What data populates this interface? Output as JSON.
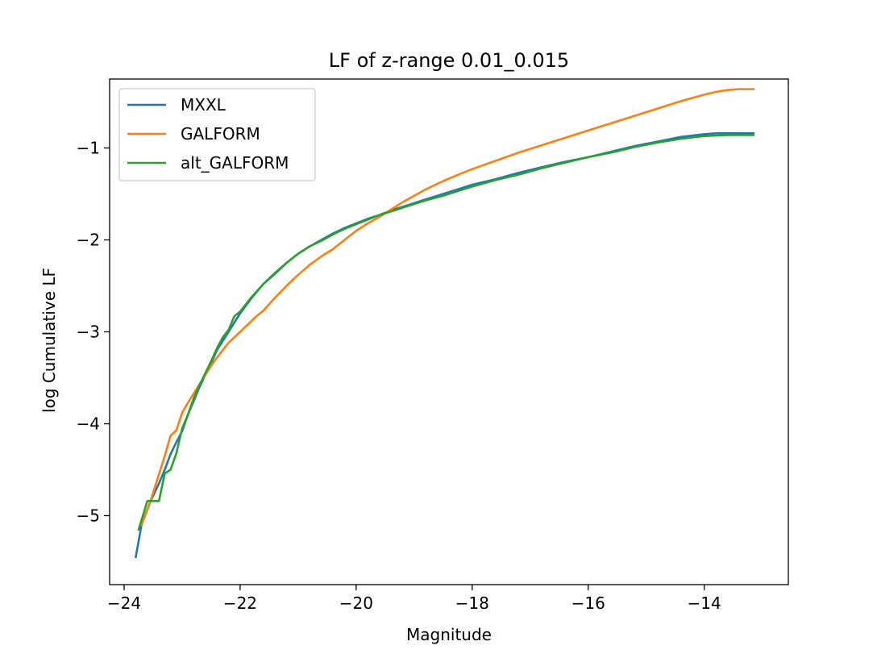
{
  "chart_data": {
    "type": "line",
    "title": "LF of z-range 0.01_0.015",
    "xlabel": "Magnitude",
    "ylabel": "log Cumulative LF",
    "xlim": [
      -24.25,
      -12.55
    ],
    "ylim": [
      -5.75,
      -0.25
    ],
    "xticks": [
      -24,
      -22,
      -20,
      -18,
      -16,
      -14
    ],
    "yticks": [
      -5,
      -4,
      -3,
      -2,
      -1
    ],
    "grid": false,
    "legend_position": "upper-left",
    "series": [
      {
        "name": "MXXL",
        "color": "#1f77b4",
        "x": [
          -23.8,
          -23.7,
          -23.55,
          -23.4,
          -23.3,
          -23.2,
          -23.1,
          -23.0,
          -22.9,
          -22.8,
          -22.7,
          -22.6,
          -22.5,
          -22.4,
          -22.3,
          -22.2,
          -22.0,
          -21.8,
          -21.6,
          -21.4,
          -21.2,
          -21.0,
          -20.8,
          -20.6,
          -20.4,
          -20.2,
          -20.0,
          -19.8,
          -19.6,
          -19.4,
          -19.2,
          -19.0,
          -18.8,
          -18.5,
          -18.2,
          -18.0,
          -17.6,
          -17.2,
          -16.8,
          -16.4,
          -16.0,
          -15.6,
          -15.2,
          -14.8,
          -14.4,
          -14.0,
          -13.8,
          -13.6,
          -13.4,
          -13.15
        ],
        "values": [
          -5.45,
          -5.1,
          -4.85,
          -4.65,
          -4.5,
          -4.33,
          -4.2,
          -4.08,
          -3.9,
          -3.75,
          -3.6,
          -3.47,
          -3.34,
          -3.2,
          -3.1,
          -3.0,
          -2.8,
          -2.63,
          -2.48,
          -2.37,
          -2.25,
          -2.15,
          -2.07,
          -2.0,
          -1.93,
          -1.87,
          -1.82,
          -1.77,
          -1.73,
          -1.68,
          -1.64,
          -1.6,
          -1.56,
          -1.5,
          -1.44,
          -1.4,
          -1.34,
          -1.27,
          -1.21,
          -1.15,
          -1.1,
          -1.04,
          -0.98,
          -0.93,
          -0.88,
          -0.85,
          -0.84,
          -0.84,
          -0.84,
          -0.84
        ]
      },
      {
        "name": "GALFORM",
        "color": "#ff7f0e",
        "x": [
          -23.7,
          -23.55,
          -23.4,
          -23.3,
          -23.2,
          -23.1,
          -23.0,
          -22.9,
          -22.8,
          -22.7,
          -22.6,
          -22.5,
          -22.4,
          -22.3,
          -22.2,
          -22.0,
          -21.8,
          -21.7,
          -21.6,
          -21.4,
          -21.2,
          -21.0,
          -20.8,
          -20.6,
          -20.4,
          -20.2,
          -20.0,
          -19.8,
          -19.6,
          -19.4,
          -19.2,
          -19.0,
          -18.8,
          -18.5,
          -18.2,
          -18.0,
          -17.6,
          -17.2,
          -16.8,
          -16.4,
          -16.0,
          -15.6,
          -15.2,
          -14.8,
          -14.4,
          -14.0,
          -13.8,
          -13.6,
          -13.4,
          -13.15
        ],
        "values": [
          -5.1,
          -4.85,
          -4.55,
          -4.35,
          -4.13,
          -4.07,
          -3.88,
          -3.77,
          -3.67,
          -3.57,
          -3.47,
          -3.37,
          -3.28,
          -3.2,
          -3.12,
          -3.0,
          -2.88,
          -2.82,
          -2.77,
          -2.63,
          -2.5,
          -2.38,
          -2.27,
          -2.18,
          -2.1,
          -2.0,
          -1.9,
          -1.82,
          -1.75,
          -1.67,
          -1.59,
          -1.52,
          -1.45,
          -1.36,
          -1.28,
          -1.23,
          -1.14,
          -1.05,
          -0.97,
          -0.89,
          -0.81,
          -0.73,
          -0.65,
          -0.57,
          -0.49,
          -0.42,
          -0.39,
          -0.37,
          -0.36,
          -0.36
        ]
      },
      {
        "name": "alt_GALFORM",
        "color": "#2ca02c",
        "x": [
          -23.75,
          -23.6,
          -23.45,
          -23.4,
          -23.3,
          -23.2,
          -23.1,
          -23.0,
          -22.9,
          -22.8,
          -22.7,
          -22.6,
          -22.5,
          -22.4,
          -22.3,
          -22.2,
          -22.1,
          -22.0,
          -21.9,
          -21.8,
          -21.6,
          -21.4,
          -21.2,
          -21.0,
          -20.8,
          -20.6,
          -20.4,
          -20.2,
          -20.0,
          -19.8,
          -19.6,
          -19.4,
          -19.2,
          -19.0,
          -18.8,
          -18.5,
          -18.2,
          -18.0,
          -17.6,
          -17.2,
          -16.8,
          -16.4,
          -16.0,
          -15.6,
          -15.2,
          -14.8,
          -14.4,
          -14.0,
          -13.6,
          -13.15
        ],
        "values": [
          -5.15,
          -4.84,
          -4.84,
          -4.84,
          -4.54,
          -4.5,
          -4.32,
          -4.05,
          -3.9,
          -3.72,
          -3.58,
          -3.45,
          -3.32,
          -3.18,
          -3.06,
          -2.98,
          -2.83,
          -2.78,
          -2.7,
          -2.62,
          -2.48,
          -2.36,
          -2.25,
          -2.15,
          -2.07,
          -2.01,
          -1.94,
          -1.88,
          -1.83,
          -1.78,
          -1.73,
          -1.69,
          -1.65,
          -1.61,
          -1.57,
          -1.52,
          -1.46,
          -1.42,
          -1.35,
          -1.29,
          -1.22,
          -1.16,
          -1.1,
          -1.05,
          -0.99,
          -0.94,
          -0.9,
          -0.87,
          -0.86,
          -0.86
        ]
      }
    ]
  }
}
